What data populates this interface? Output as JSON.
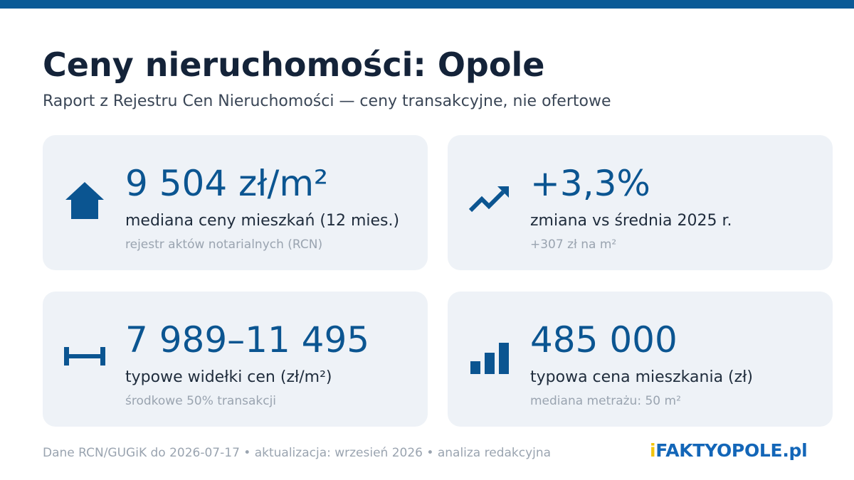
{
  "header": {
    "title": "Ceny nieruchomości: Opole",
    "subtitle": "Raport z Rejestru Cen Nieruchomości — ceny transakcyjne, nie ofertowe"
  },
  "cards": [
    {
      "icon": "house-icon",
      "value": "9 504 zł/m²",
      "label": "mediana ceny mieszkań (12 mies.)",
      "note": "rejestr aktów notarialnych (RCN)"
    },
    {
      "icon": "trend-up-icon",
      "value": "+3,3%",
      "label": "zmiana vs średnia 2025 r.",
      "note": "+307 zł na m²"
    },
    {
      "icon": "range-icon",
      "value": "7 989–11 495",
      "label": "typowe widełki cen (zł/m²)",
      "note": "środkowe 50% transakcji"
    },
    {
      "icon": "bar-chart-icon",
      "value": "485 000",
      "label": "typowa cena mieszkania (zł)",
      "note": "mediana metrażu: 50 m²"
    }
  ],
  "footer": {
    "text": "Dane RCN/GUGiK do 2026-07-17 • aktualizacja: wrzesień 2026 • analiza redakcyjna"
  },
  "logo": {
    "mark": "i",
    "brand": "FAKTYOPOLE",
    "tld": ".pl"
  },
  "colors": {
    "accent": "#0b5591",
    "top_bar": "#0a5a96",
    "card_background": "#eef2f7",
    "logo_yellow": "#f2c40d",
    "logo_blue": "#1366b8"
  }
}
